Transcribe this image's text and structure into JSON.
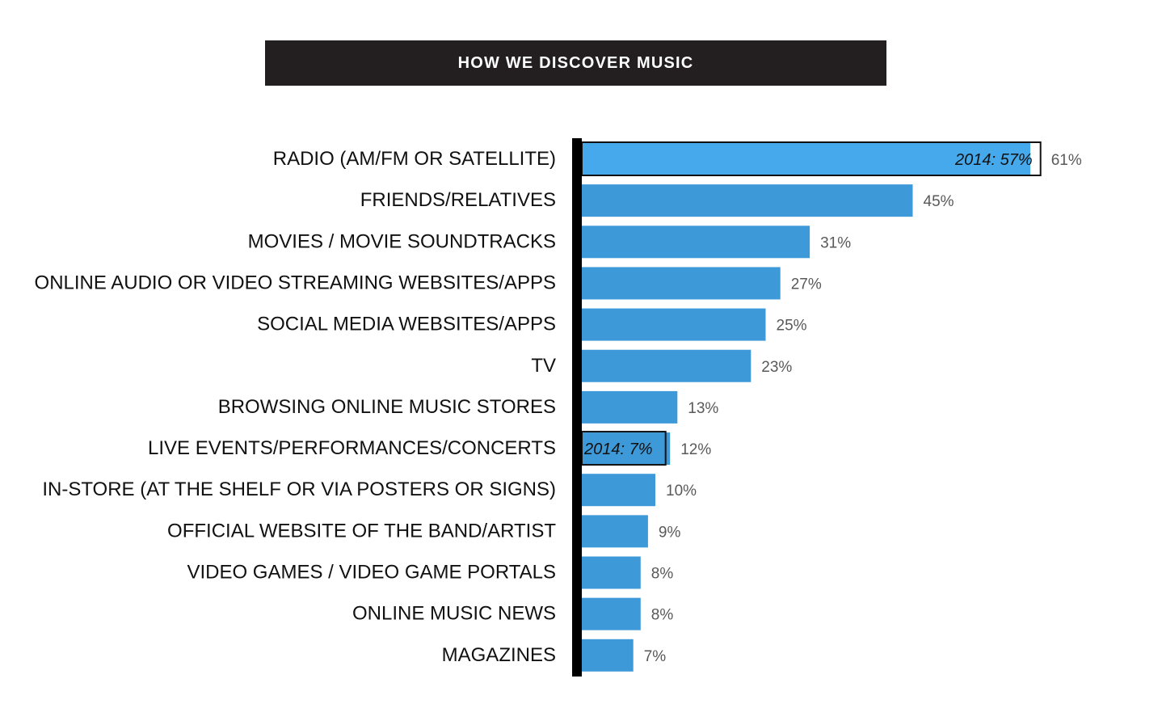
{
  "chart_data": {
    "type": "bar",
    "orientation": "horizontal",
    "title": "HOW WE DISCOVER MUSIC",
    "xlim": [
      0,
      61
    ],
    "grid": false,
    "bar_color": "#3d99d8",
    "highlight_color": "#45a9eb",
    "categories": [
      "RADIO (AM/FM OR SATELLITE)",
      "FRIENDS/RELATIVES",
      "MOVIES / MOVIE SOUNDTRACKS",
      "ONLINE AUDIO OR VIDEO STREAMING WEBSITES/APPS",
      "SOCIAL MEDIA WEBSITES/APPS",
      "TV",
      "BROWSING ONLINE MUSIC STORES",
      "LIVE EVENTS/PERFORMANCES/CONCERTS",
      "IN-STORE (AT THE SHELF OR VIA POSTERS OR SIGNS)",
      "OFFICIAL WEBSITE OF THE BAND/ARTIST",
      "VIDEO GAMES / VIDEO GAME PORTALS",
      "ONLINE MUSIC NEWS",
      "MAGAZINES"
    ],
    "values": [
      61,
      45,
      31,
      27,
      25,
      23,
      13,
      12,
      10,
      9,
      8,
      8,
      7
    ],
    "value_labels": [
      "61%",
      "45%",
      "31%",
      "27%",
      "25%",
      "23%",
      "13%",
      "12%",
      "10%",
      "9%",
      "8%",
      "8%",
      "7%"
    ],
    "annotations": [
      {
        "category_index": 0,
        "value": 57,
        "text": "2014: 57%"
      },
      {
        "category_index": 7,
        "value": 7,
        "text": "2014: 7%"
      }
    ]
  }
}
